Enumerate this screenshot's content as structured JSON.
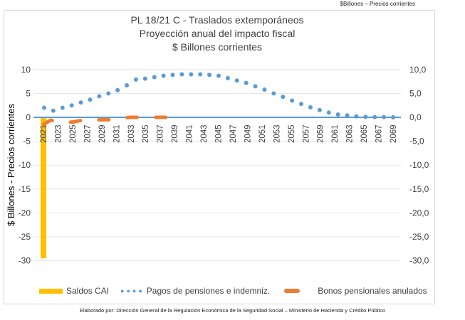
{
  "top_note": "$Billones – Precios corrientes",
  "footer": "Elaborado por: Dirección General de la Regulación Económica de la Seguridad Social – Ministerio de Hacienda y Crédito Público",
  "chart_data": {
    "type": "bar+line",
    "title": [
      "PL 18/21 C - Traslados extemporáneos",
      "Proyección anual del impacto fiscal",
      "$ Billones corrientes"
    ],
    "ylabel": "$ Billones - Precios corrientes",
    "ylim": [
      -30,
      10
    ],
    "yticks": [
      "10",
      "5",
      "0",
      "-5",
      "-10",
      "-15",
      "-20",
      "-25",
      "-30"
    ],
    "y2ticks": [
      "10,0",
      "5,0",
      "0,0",
      "-5,0",
      "-10,0",
      "-15,0",
      "-20,0",
      "-25,0",
      "-30,0"
    ],
    "xticks": [
      "2021",
      "2023",
      "2025",
      "2027",
      "2029",
      "2031",
      "2033",
      "2035",
      "2037",
      "2039",
      "2041",
      "2043",
      "2045",
      "2047",
      "2049",
      "2051",
      "2053",
      "2055",
      "2057",
      "2059",
      "2061",
      "2063",
      "2065",
      "2067",
      "2069"
    ],
    "grid": true,
    "legend_position": "bottom",
    "series": [
      {
        "name": "Saldos CAI",
        "type": "bar",
        "color": "#FFC000",
        "x": [
          2021
        ],
        "values": [
          -29.5
        ]
      },
      {
        "name": "Pagos de pensiones e indemniz.",
        "type": "dotted-line",
        "color": "#5B9BD5",
        "values": [
          2.0,
          1.4,
          2.0,
          2.5,
          3.1,
          3.7,
          4.4,
          5.0,
          5.7,
          6.7,
          7.9,
          8.1,
          8.4,
          8.7,
          8.9,
          9.0,
          9.0,
          9.0,
          8.9,
          8.7,
          8.2,
          7.7,
          7.2,
          6.5,
          5.8,
          5.0,
          4.3,
          3.5,
          2.8,
          2.1,
          1.5,
          1.0,
          0.6,
          0.4,
          0.2,
          0.1,
          0.05,
          0.05,
          0.0
        ]
      },
      {
        "name": "Bonos pensionales anulados",
        "type": "dashed-line",
        "color": "#ED7D31",
        "x": [
          2021,
          2022,
          2023,
          2024,
          2025,
          2026,
          2027,
          2028,
          2029,
          2030,
          2031,
          2032,
          2033,
          2034,
          2035,
          2036,
          2037,
          2038
        ],
        "values": [
          -1.5,
          -0.6,
          -0.9,
          -1.0,
          -1.0,
          -0.7,
          -0.6,
          -0.5,
          -0.5,
          -0.5,
          -0.3,
          -0.1,
          0,
          0,
          0,
          0,
          0,
          0
        ]
      }
    ]
  }
}
